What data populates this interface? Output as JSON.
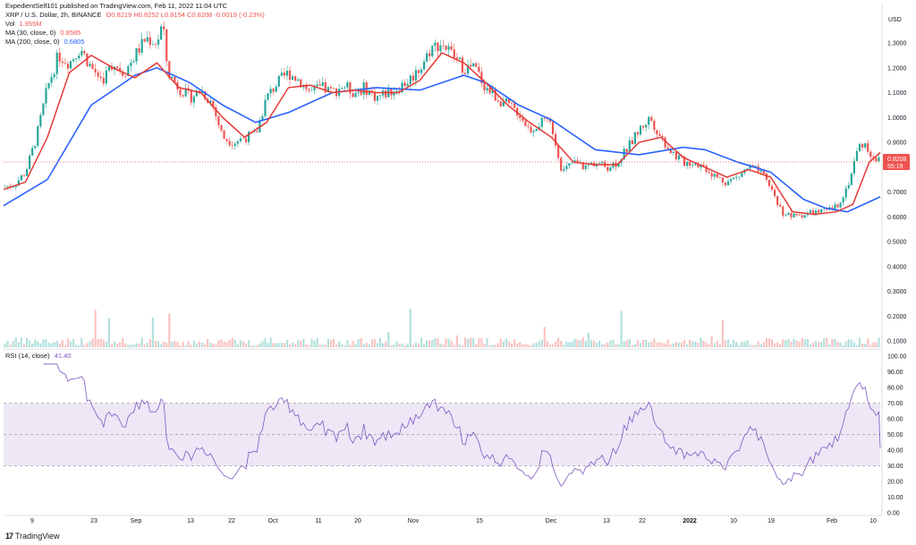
{
  "header": {
    "published": "ExpedientSelf101 published on TradingView.com, Feb 11, 2022 11:04 UTC",
    "symbol": "XRP / U.S. Dollar, 2h, BINANCE",
    "ohlc": "O0.8219 H0.8252 L0.8154 C0.8208 -0.0019 (-0.23%)",
    "vol_label": "Vol",
    "vol_value": "1.955M",
    "ma30_label": "MA (30, close, 0)",
    "ma30_value": "0.8585",
    "ma200_label": "MA (200, close, 0)",
    "ma200_value": "0.6805",
    "rsi_label": "RSI (14, close)",
    "rsi_value": "41.40",
    "currency": "USD"
  },
  "footer": {
    "brand": "TradingView",
    "logo": "17"
  },
  "colors": {
    "up": "#26a69a",
    "down": "#ef5350",
    "ma30": "#e53935",
    "ma200": "#2962ff",
    "rsi": "#7e57c2",
    "rsi_band": "#ede7f6",
    "price_tag": "#ef5350",
    "text": "#131722"
  },
  "chart_data": [
    {
      "type": "candlestick",
      "title": "",
      "y_axis": [
        1.3,
        1.2,
        1.1,
        1.0,
        0.9,
        0.8,
        0.7,
        0.6,
        0.5,
        0.4,
        0.3,
        0.2,
        0.1
      ],
      "y_axis_labels": [
        "1.3000",
        "1.2000",
        "1.1000",
        "1.0000",
        "0.9000",
        "0.8000",
        "0.7000",
        "0.6000",
        "0.5000",
        "0.4000",
        "0.3000",
        "0.2000",
        "0.1000"
      ],
      "ylim": [
        0.0,
        1.38
      ],
      "x_ticks": [
        "9",
        "23",
        "Sep",
        "13",
        "22",
        "Oct",
        "11",
        "20",
        "Nov",
        "15",
        "Dec",
        "13",
        "22",
        "2022",
        "10",
        "19",
        "Feb",
        "10"
      ],
      "price_path": [
        [
          0,
          0.72
        ],
        [
          2,
          0.73
        ],
        [
          4,
          0.78
        ],
        [
          6,
          0.92
        ],
        [
          8,
          1.12
        ],
        [
          10,
          1.25
        ],
        [
          12,
          1.22
        ],
        [
          14,
          1.28
        ],
        [
          16,
          1.2
        ],
        [
          18,
          1.15
        ],
        [
          20,
          1.22
        ],
        [
          22,
          1.18
        ],
        [
          24,
          1.25
        ],
        [
          26,
          1.32
        ],
        [
          28,
          1.3
        ],
        [
          29,
          1.38
        ],
        [
          30,
          1.18
        ],
        [
          32,
          1.12
        ],
        [
          34,
          1.08
        ],
        [
          36,
          1.11
        ],
        [
          38,
          1.06
        ],
        [
          40,
          0.92
        ],
        [
          42,
          0.9
        ],
        [
          44,
          0.92
        ],
        [
          46,
          0.93
        ],
        [
          48,
          1.08
        ],
        [
          50,
          1.14
        ],
        [
          52,
          1.18
        ],
        [
          54,
          1.15
        ],
        [
          56,
          1.1
        ],
        [
          58,
          1.12
        ],
        [
          60,
          1.1
        ],
        [
          62,
          1.13
        ],
        [
          64,
          1.1
        ],
        [
          66,
          1.12
        ],
        [
          68,
          1.08
        ],
        [
          70,
          1.1
        ],
        [
          72,
          1.12
        ],
        [
          74,
          1.15
        ],
        [
          76,
          1.2
        ],
        [
          78,
          1.28
        ],
        [
          80,
          1.3
        ],
        [
          82,
          1.25
        ],
        [
          84,
          1.2
        ],
        [
          86,
          1.2
        ],
        [
          88,
          1.12
        ],
        [
          90,
          1.08
        ],
        [
          92,
          1.05
        ],
        [
          94,
          1.02
        ],
        [
          96,
          0.95
        ],
        [
          98,
          0.98
        ],
        [
          100,
          0.97
        ],
        [
          102,
          0.78
        ],
        [
          104,
          0.82
        ],
        [
          106,
          0.8
        ],
        [
          108,
          0.82
        ],
        [
          110,
          0.8
        ],
        [
          112,
          0.82
        ],
        [
          114,
          0.88
        ],
        [
          116,
          0.95
        ],
        [
          118,
          1.0
        ],
        [
          120,
          0.92
        ],
        [
          122,
          0.86
        ],
        [
          124,
          0.82
        ],
        [
          126,
          0.82
        ],
        [
          128,
          0.8
        ],
        [
          130,
          0.76
        ],
        [
          132,
          0.74
        ],
        [
          134,
          0.76
        ],
        [
          136,
          0.8
        ],
        [
          138,
          0.78
        ],
        [
          140,
          0.72
        ],
        [
          142,
          0.62
        ],
        [
          144,
          0.6
        ],
        [
          146,
          0.61
        ],
        [
          148,
          0.62
        ],
        [
          150,
          0.62
        ],
        [
          152,
          0.64
        ],
        [
          154,
          0.72
        ],
        [
          156,
          0.88
        ],
        [
          157,
          0.9
        ],
        [
          158,
          0.86
        ],
        [
          160,
          0.8208
        ]
      ],
      "ma30_path": [
        [
          0,
          0.71
        ],
        [
          4,
          0.74
        ],
        [
          8,
          0.92
        ],
        [
          12,
          1.18
        ],
        [
          16,
          1.25
        ],
        [
          20,
          1.2
        ],
        [
          24,
          1.16
        ],
        [
          28,
          1.22
        ],
        [
          32,
          1.12
        ],
        [
          36,
          1.1
        ],
        [
          40,
          1.0
        ],
        [
          44,
          0.92
        ],
        [
          48,
          0.98
        ],
        [
          52,
          1.12
        ],
        [
          56,
          1.13
        ],
        [
          60,
          1.1
        ],
        [
          64,
          1.11
        ],
        [
          68,
          1.1
        ],
        [
          72,
          1.1
        ],
        [
          76,
          1.15
        ],
        [
          80,
          1.26
        ],
        [
          84,
          1.22
        ],
        [
          88,
          1.14
        ],
        [
          92,
          1.05
        ],
        [
          96,
          0.98
        ],
        [
          100,
          0.92
        ],
        [
          104,
          0.82
        ],
        [
          108,
          0.81
        ],
        [
          112,
          0.81
        ],
        [
          116,
          0.9
        ],
        [
          120,
          0.92
        ],
        [
          124,
          0.84
        ],
        [
          128,
          0.8
        ],
        [
          132,
          0.76
        ],
        [
          136,
          0.79
        ],
        [
          140,
          0.76
        ],
        [
          144,
          0.62
        ],
        [
          148,
          0.61
        ],
        [
          152,
          0.62
        ],
        [
          155,
          0.65
        ],
        [
          158,
          0.82
        ],
        [
          160,
          0.8585
        ]
      ],
      "ma200_path": [
        [
          0,
          0.645
        ],
        [
          8,
          0.75
        ],
        [
          16,
          1.05
        ],
        [
          24,
          1.17
        ],
        [
          28,
          1.2
        ],
        [
          34,
          1.14
        ],
        [
          40,
          1.05
        ],
        [
          46,
          0.98
        ],
        [
          52,
          1.02
        ],
        [
          60,
          1.1
        ],
        [
          68,
          1.12
        ],
        [
          76,
          1.11
        ],
        [
          84,
          1.17
        ],
        [
          88,
          1.14
        ],
        [
          94,
          1.05
        ],
        [
          100,
          0.99
        ],
        [
          108,
          0.87
        ],
        [
          116,
          0.85
        ],
        [
          124,
          0.88
        ],
        [
          128,
          0.87
        ],
        [
          134,
          0.82
        ],
        [
          140,
          0.78
        ],
        [
          146,
          0.67
        ],
        [
          150,
          0.635
        ],
        [
          154,
          0.62
        ],
        [
          157,
          0.65
        ],
        [
          160,
          0.6805
        ]
      ],
      "last_price": 0.8208,
      "last_price_label": "0.8208",
      "countdown_label": "55:19"
    },
    {
      "type": "bar",
      "series_name": "Vol",
      "note": "volume histogram at the bottom of the price pane, shares the price scale"
    },
    {
      "type": "line",
      "series_name": "RSI (14, close)",
      "y_axis": [
        100,
        90,
        80,
        70,
        60,
        50,
        40,
        30,
        20,
        10,
        0
      ],
      "y_axis_labels": [
        "100.00",
        "90.00",
        "80.00",
        "70.00",
        "60.00",
        "50.00",
        "40.00",
        "30.00",
        "20.00",
        "10.00",
        "0.00"
      ],
      "ylim": [
        0,
        100
      ],
      "band": [
        30,
        70
      ],
      "midline": 50,
      "last_value": 41.4
    }
  ]
}
